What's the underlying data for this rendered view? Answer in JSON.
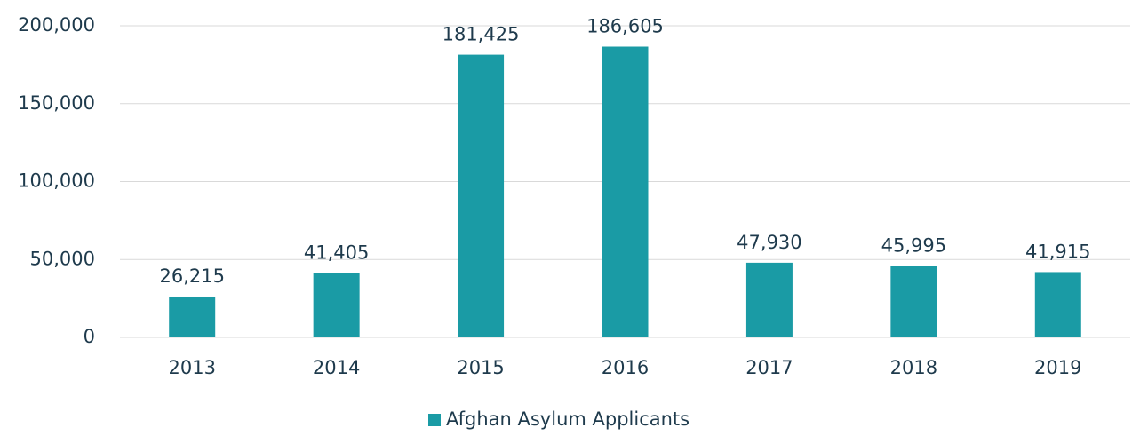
{
  "chart_data": {
    "type": "bar",
    "categories": [
      "2013",
      "2014",
      "2015",
      "2016",
      "2017",
      "2018",
      "2019"
    ],
    "series": [
      {
        "name": "Afghan Asylum Applicants",
        "color": "#1a9ba5",
        "values": [
          26215,
          41405,
          181425,
          186605,
          47930,
          45995,
          41915
        ],
        "value_labels": [
          "26,215",
          "41,405",
          "181,425",
          "186,605",
          "47,930",
          "45,995",
          "41,915"
        ]
      }
    ],
    "ylim": [
      0,
      200000
    ],
    "yticks": [
      0,
      {
        "value": 50000,
        "label": "50,000"
      },
      {
        "value": 100000,
        "label": "100,000"
      },
      {
        "value": 150000,
        "label": "150,000"
      },
      {
        "value": 200000,
        "label": "200,000"
      }
    ],
    "grid": true,
    "legend": "bottom"
  }
}
